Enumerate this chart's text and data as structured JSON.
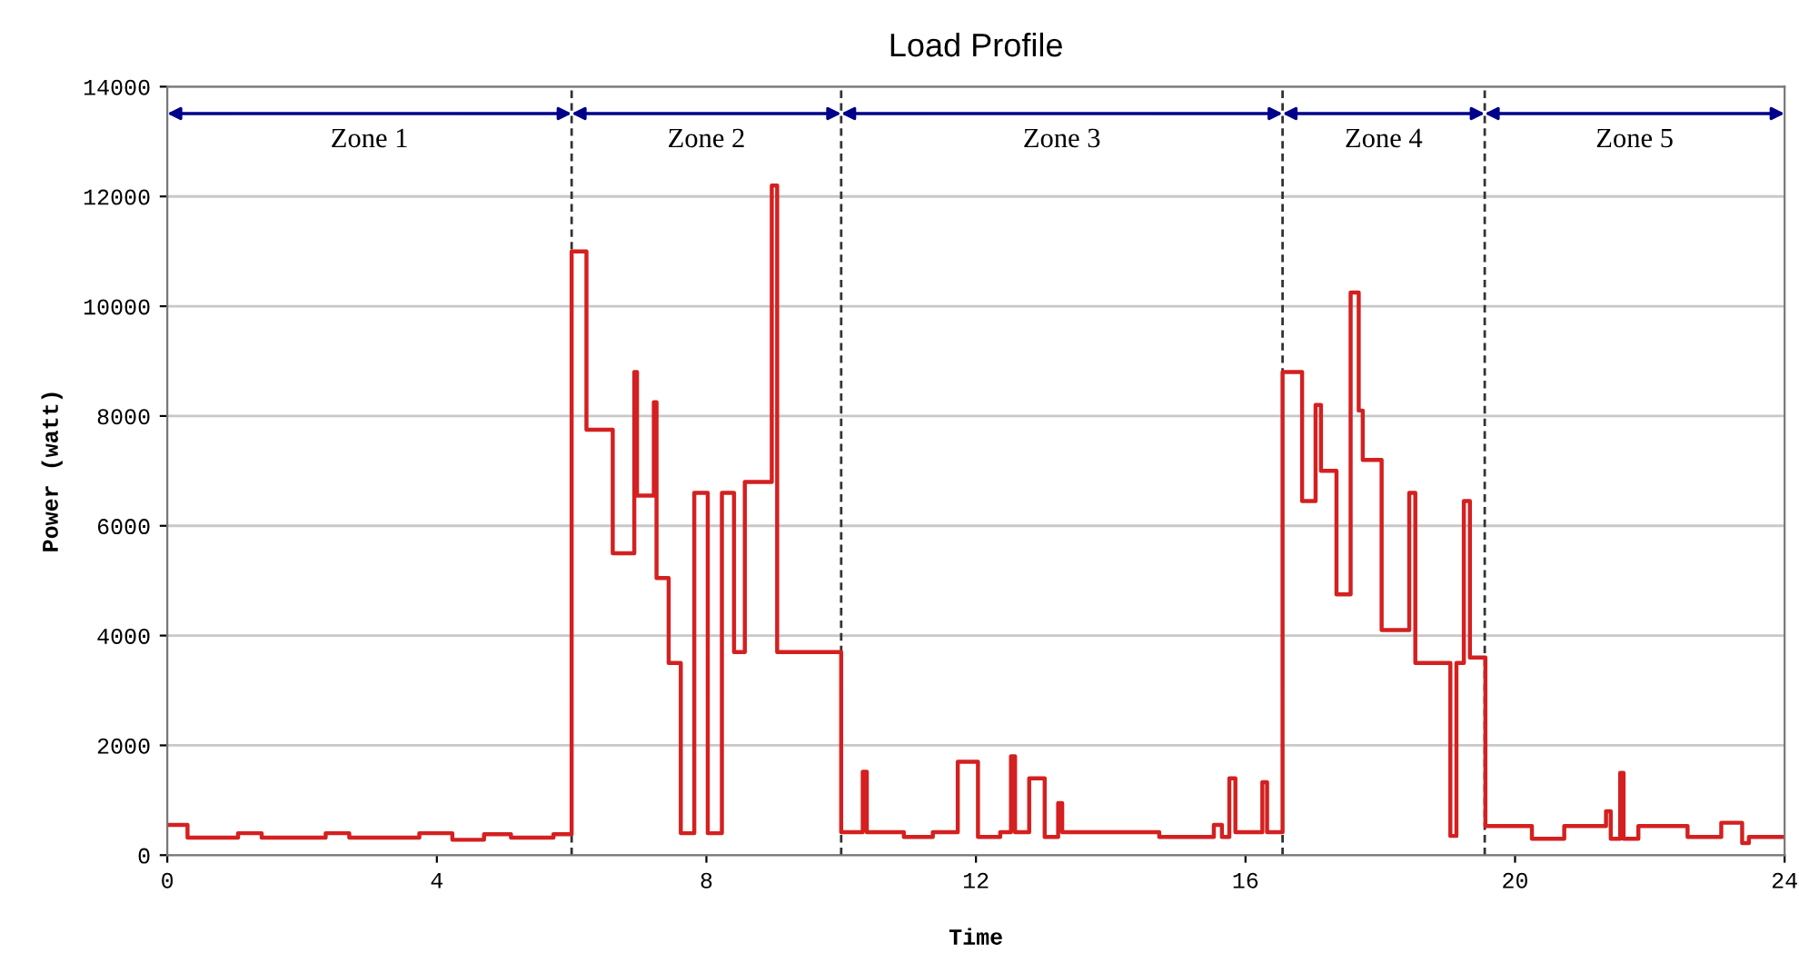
{
  "chart_data": {
    "type": "step",
    "title": "Load Profile",
    "xlabel": "Time",
    "ylabel": "Power (watt)",
    "xlim": [
      0,
      24
    ],
    "xticks": [
      0,
      4,
      8,
      12,
      16,
      20,
      24
    ],
    "ylim": [
      0,
      14000
    ],
    "yticks": [
      0,
      2000,
      4000,
      6000,
      8000,
      10000,
      12000,
      14000
    ],
    "grid": "y",
    "legend": false,
    "series": [
      {
        "color": "#d42020",
        "x": [
          0,
          0.3,
          1.05,
          1.4,
          2.35,
          2.7,
          3.74,
          4.23,
          4.7,
          5.1,
          5.73,
          6.0,
          6.22,
          6.61,
          6.93,
          6.97,
          7.22,
          7.26,
          7.44,
          7.62,
          7.82,
          8.02,
          8.23,
          8.41,
          8.57,
          8.97,
          9.05,
          10.0,
          10.32,
          10.38,
          10.93,
          11.36,
          11.73,
          12.03,
          12.36,
          12.52,
          12.58,
          12.79,
          13.02,
          13.22,
          13.28,
          14.72,
          15.53,
          15.65,
          15.76,
          15.85,
          16.25,
          16.32,
          16.55,
          16.84,
          17.04,
          17.12,
          17.35,
          17.56,
          17.68,
          17.74,
          18.02,
          18.43,
          18.52,
          19.04,
          19.13,
          19.24,
          19.33,
          19.56,
          20.25,
          20.73,
          21.35,
          21.42,
          21.56,
          21.61,
          21.83,
          22.56,
          23.06,
          23.37,
          23.47,
          24
        ],
        "values": [
          550,
          320,
          400,
          320,
          400,
          320,
          400,
          280,
          380,
          320,
          380,
          11000,
          7750,
          5500,
          8800,
          6550,
          8250,
          5050,
          3500,
          400,
          6600,
          400,
          6600,
          3700,
          6800,
          12200,
          3700,
          420,
          1520,
          420,
          330,
          420,
          1700,
          330,
          420,
          1800,
          420,
          1400,
          330,
          950,
          420,
          330,
          550,
          330,
          1400,
          420,
          1330,
          420,
          8800,
          6450,
          8200,
          7000,
          4750,
          10250,
          8100,
          7200,
          4100,
          6600,
          3500,
          350,
          3500,
          6450,
          3600,
          530,
          300,
          530,
          800,
          300,
          1500,
          300,
          530,
          330,
          590,
          220,
          330,
          330
        ]
      }
    ],
    "ref_lines": [
      {
        "axis": "x",
        "value": 6.0,
        "color": "#333333",
        "line_style": "dashed"
      },
      {
        "axis": "x",
        "value": 10.0,
        "color": "#333333",
        "line_style": "dashed"
      },
      {
        "axis": "x",
        "value": 16.55,
        "color": "#333333",
        "line_style": "dashed"
      },
      {
        "axis": "x",
        "value": 19.55,
        "color": "#333333",
        "line_style": "dashed"
      }
    ],
    "annotations": [
      "Zone 1",
      "Zone 2",
      "Zone 3",
      "Zone 4",
      "Zone 5"
    ]
  }
}
